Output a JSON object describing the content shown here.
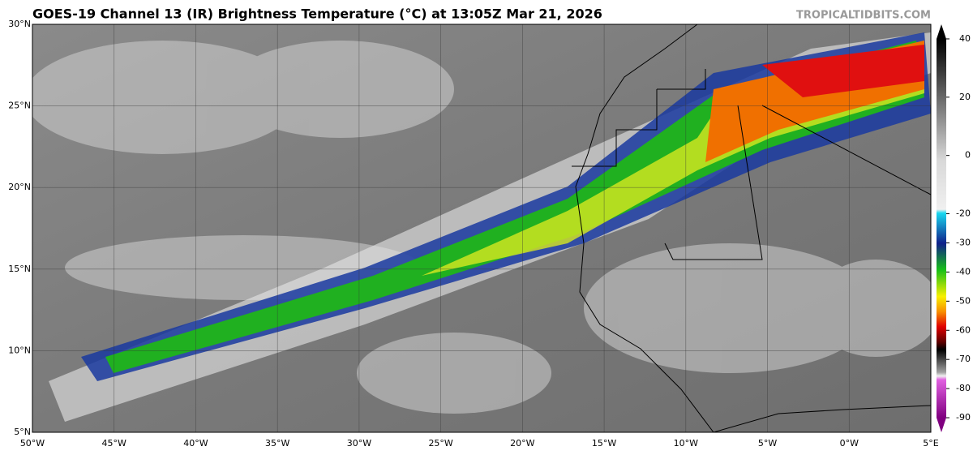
{
  "header": {
    "title": "GOES-19 Channel 13 (IR) Brightness Temperature (°C) at 13:05Z Mar 21, 2026",
    "source": "TROPICALTIDBITS.COM"
  },
  "map": {
    "xlim": [
      -50,
      5
    ],
    "ylim": [
      5,
      30
    ],
    "lon_ticks": [
      {
        "value": -50,
        "label": "50°W"
      },
      {
        "value": -45,
        "label": "45°W"
      },
      {
        "value": -40,
        "label": "40°W"
      },
      {
        "value": -35,
        "label": "35°W"
      },
      {
        "value": -30,
        "label": "30°W"
      },
      {
        "value": -25,
        "label": "25°W"
      },
      {
        "value": -20,
        "label": "20°W"
      },
      {
        "value": -15,
        "label": "15°W"
      },
      {
        "value": -10,
        "label": "10°W"
      },
      {
        "value": -5,
        "label": "5°W"
      },
      {
        "value": 0,
        "label": "0°W"
      },
      {
        "value": 5,
        "label": "5°E"
      }
    ],
    "lat_ticks": [
      {
        "value": 5,
        "label": "5°N"
      },
      {
        "value": 10,
        "label": "10°N"
      },
      {
        "value": 15,
        "label": "15°N"
      },
      {
        "value": 20,
        "label": "20°N"
      },
      {
        "value": 25,
        "label": "25°N"
      },
      {
        "value": 30,
        "label": "30°N"
      }
    ]
  },
  "colorbar": {
    "range": [
      45,
      -95
    ],
    "ticks": [
      40,
      20,
      0,
      -20,
      -30,
      -40,
      -50,
      -60,
      -70,
      -80,
      -90
    ]
  }
}
